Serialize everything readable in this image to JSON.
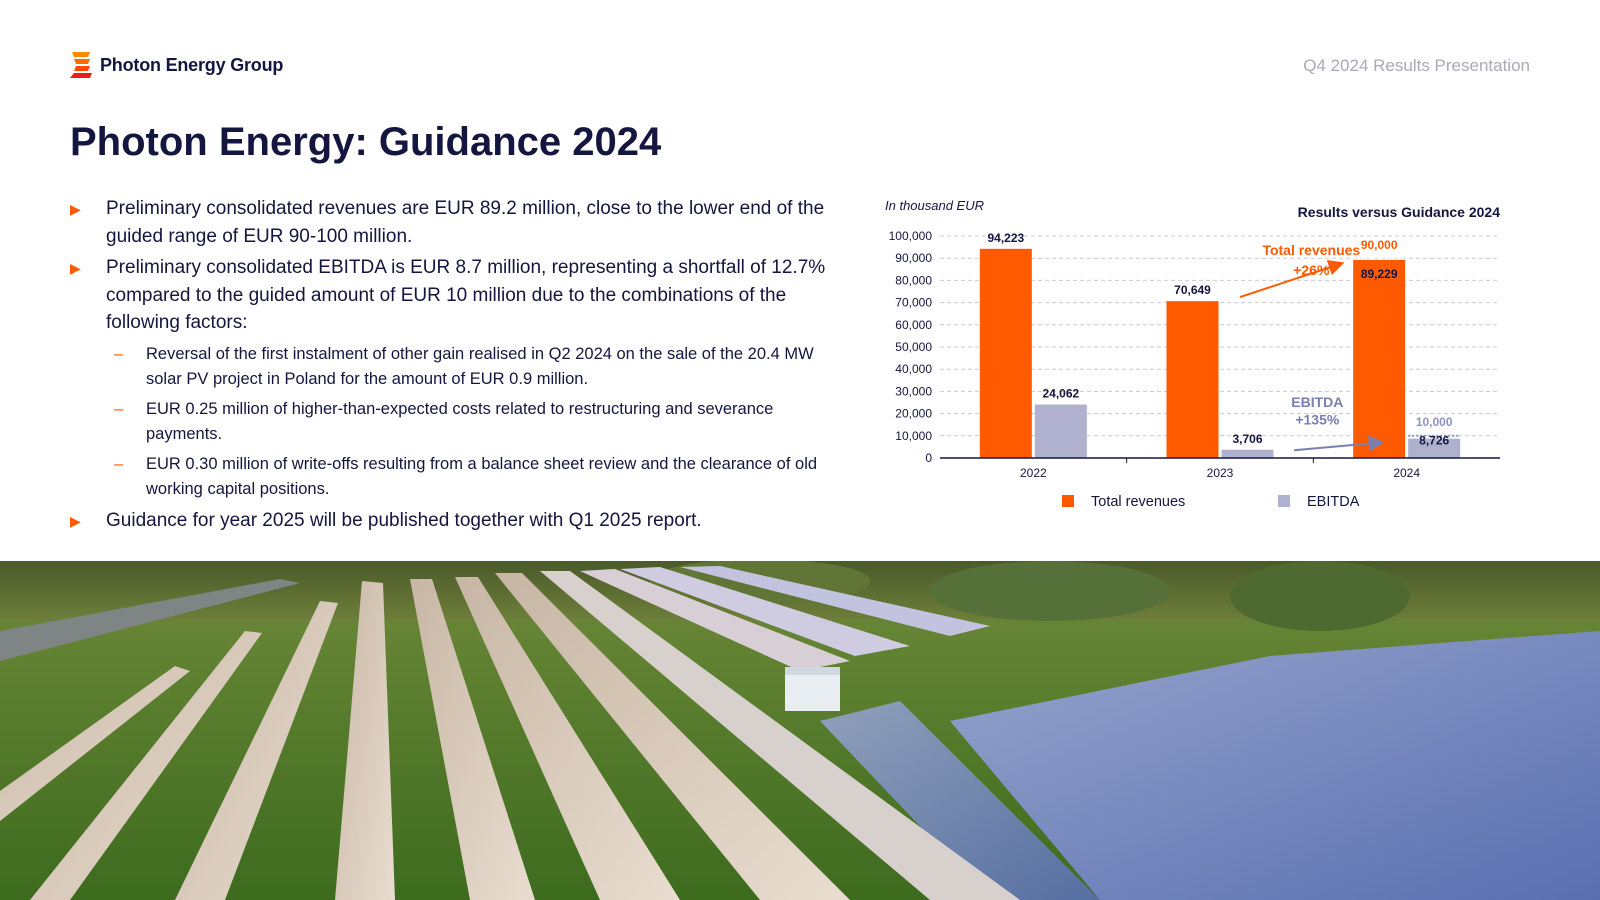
{
  "header": {
    "logo_text": "Photon Energy Group",
    "subtitle": "Q4 2024 Results Presentation"
  },
  "title": "Photon Energy: Guidance 2024",
  "bullets": [
    {
      "text": "Preliminary consolidated revenues are EUR 89.2 million, close to the lower end of the guided range of EUR 90-100 million."
    },
    {
      "text": "Preliminary consolidated EBITDA is EUR 8.7 million, representing a shortfall of 12.7% compared to the guided amount of EUR 10 million due to the combinations of the following factors:",
      "sub": [
        "Reversal of the first instalment of other gain realised in Q2 2024 on the sale of the 20.4 MW solar PV project in Poland for the amount of EUR 0.9 million.",
        "EUR 0.25 million of higher-than-expected costs related to restructuring and severance payments.",
        "EUR 0.30 million of write-offs resulting from a balance sheet review and the clearance of old working capital positions."
      ]
    },
    {
      "text": "Guidance for year 2025 will be published together with Q1 2025 report."
    }
  ],
  "chart_data": {
    "type": "bar",
    "title": "Results versus Guidance 2024",
    "unit_note": "In thousand EUR",
    "categories": [
      "2022",
      "2023",
      "2024"
    ],
    "series": [
      {
        "name": "Total revenues",
        "values": [
          94223,
          70649,
          89229
        ],
        "labels": [
          "94,223",
          "70,649",
          "89,229"
        ],
        "color": "#ff5a00"
      },
      {
        "name": "EBITDA",
        "values": [
          24062,
          3706,
          8726
        ],
        "labels": [
          "24,062",
          "3,706",
          "8,726"
        ],
        "color": "#afb1cf"
      }
    ],
    "guidance_2024": {
      "Total revenues": {
        "value": 90000,
        "label": "90,000"
      },
      "EBITDA": {
        "value": 10000,
        "label": "10,000"
      }
    },
    "annotations": [
      {
        "series": "Total revenues",
        "line1": "Total revenues",
        "line2": "+26%",
        "color": "#ff5a00"
      },
      {
        "series": "EBITDA",
        "line1": "EBITDA",
        "line2": "+135%",
        "color": "#7a7fb0"
      }
    ],
    "ylim": [
      0,
      100000
    ],
    "yticks": [
      "0",
      "10,000",
      "20,000",
      "30,000",
      "40,000",
      "50,000",
      "60,000",
      "70,000",
      "80,000",
      "90,000",
      "100,000"
    ],
    "grid": true,
    "legend_position": "bottom",
    "colors": {
      "revenue": "#ff5a00",
      "ebitda": "#afb1cf",
      "ebitda_text": "#7a7fb0",
      "axis": "#14163f"
    }
  },
  "colors": {
    "brand_orange": "#ff5a00",
    "navy": "#14163f",
    "muted": "#a9a9b8"
  }
}
